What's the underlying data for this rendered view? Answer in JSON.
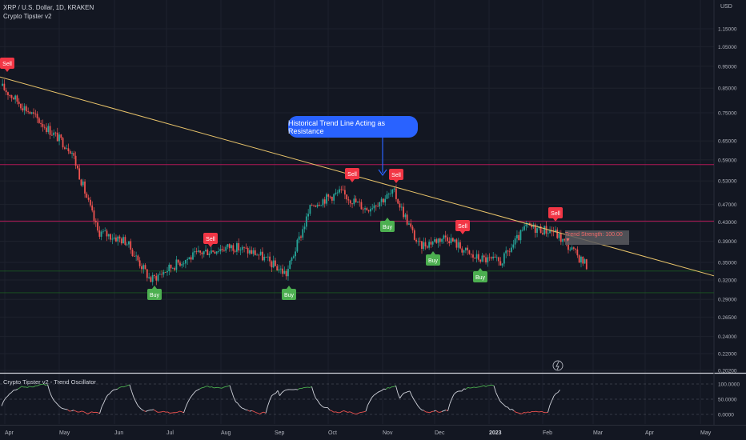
{
  "header": {
    "symbol": "XRP / U.S. Dollar, 1D, KRAKEN",
    "indicator": "Crypto Tipster v2",
    "currency": "USD"
  },
  "annotation": {
    "callout": "Historical Trend Line Acting as Resistance",
    "trend_strength": "Trend Strength: 100.00 ▼"
  },
  "oscillator": {
    "title": "Crypto Tipster v2 - Trend Oscillator",
    "levels": [
      "100.0000",
      "50.0000",
      "0.0000"
    ]
  },
  "colors": {
    "background": "#131722",
    "up": "#26a69a",
    "down": "#ef5350",
    "trendline": "#e8c36a",
    "callout": "#2962ff",
    "buy": "#4caf50",
    "sell": "#f23645",
    "resistance": "#c2185b",
    "support": "#1b5e20"
  },
  "chart_data": [
    {
      "type": "candlestick",
      "title": "XRP / U.S. Dollar, 1D, KRAKEN",
      "y_scale": "log",
      "y_ticks": [
        "1.15000",
        "1.05000",
        "0.95000",
        "0.85000",
        "0.75000",
        "0.65000",
        "0.59000",
        "0.53000",
        "0.47000",
        "0.43000",
        "0.39000",
        "0.35000",
        "0.32000",
        "0.29000",
        "0.26500",
        "0.24000",
        "0.22000",
        "0.20200"
      ],
      "y_tick_values": [
        1.15,
        1.05,
        0.95,
        0.85,
        0.75,
        0.65,
        0.59,
        0.53,
        0.47,
        0.43,
        0.39,
        0.35,
        0.32,
        0.29,
        0.265,
        0.24,
        0.22,
        0.202
      ],
      "x_ticks": [
        "Apr",
        "May",
        "Jun",
        "Jul",
        "Aug",
        "Sep",
        "Oct",
        "Nov",
        "Dec",
        "2023",
        "Feb",
        "Mar",
        "Apr",
        "May"
      ],
      "price_path": [
        [
          "Apr",
          0.86
        ],
        [
          "May",
          0.62
        ],
        [
          "May",
          0.41
        ],
        [
          "Jun",
          0.39
        ],
        [
          "Jun",
          0.32
        ],
        [
          "Jul",
          0.35
        ],
        [
          "Jul",
          0.37
        ],
        [
          "Aug",
          0.38
        ],
        [
          "Aug",
          0.365
        ],
        [
          "Sep",
          0.33
        ],
        [
          "Sep",
          0.47
        ],
        [
          "Oct",
          0.5
        ],
        [
          "Oct",
          0.46
        ],
        [
          "Nov",
          0.5
        ],
        [
          "Nov",
          0.38
        ],
        [
          "Dec",
          0.4
        ],
        [
          "Dec",
          0.36
        ],
        [
          "2023",
          0.35
        ],
        [
          "2023",
          0.42
        ],
        [
          "Feb",
          0.41
        ],
        [
          "Feb",
          0.345
        ]
      ],
      "horizontal_levels": [
        0.576,
        0.432,
        0.335,
        0.3
      ],
      "trend_line": [
        [
          0.9,
          "Apr"
        ],
        [
          0.335,
          "Mar"
        ]
      ],
      "signals": [
        {
          "label": "Sell",
          "at": "Apr",
          "price": 0.9
        },
        {
          "label": "Sell",
          "at": "Jul",
          "price": 0.39
        },
        {
          "label": "Buy",
          "at": "Jun",
          "price": 0.32
        },
        {
          "label": "Buy",
          "at": "Sep",
          "price": 0.325
        },
        {
          "label": "Sell",
          "at": "Oct",
          "price": 0.55
        },
        {
          "label": "Sell",
          "at": "Nov",
          "price": 0.52
        },
        {
          "label": "Buy",
          "at": "Nov",
          "price": 0.43
        },
        {
          "label": "Buy",
          "at": "Dec",
          "price": 0.355
        },
        {
          "label": "Sell",
          "at": "Dec",
          "price": 0.4
        },
        {
          "label": "Buy",
          "at": "2023",
          "price": 0.335
        },
        {
          "label": "Sell",
          "at": "Feb",
          "price": 0.425
        }
      ]
    },
    {
      "type": "line",
      "title": "Crypto Tipster v2 - Trend Oscillator",
      "ylim": [
        0,
        100
      ],
      "y_ticks": [
        "100.0000",
        "50.0000",
        "0.0000"
      ]
    }
  ]
}
